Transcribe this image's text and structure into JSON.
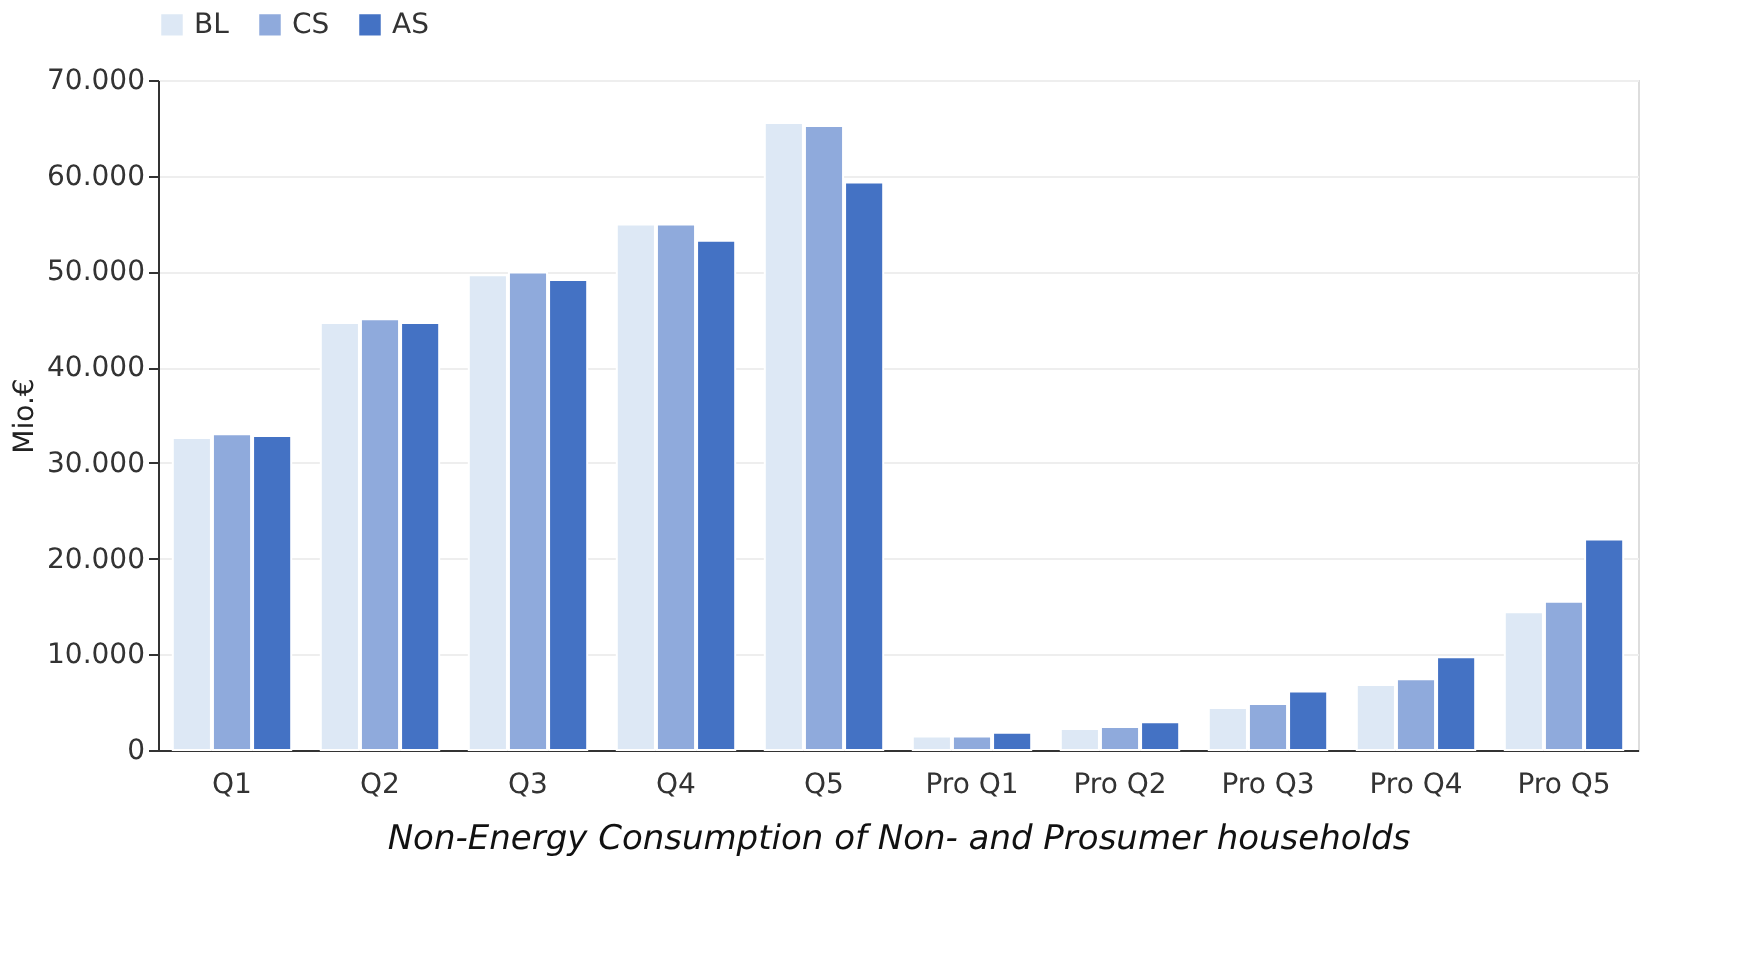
{
  "chart_data": {
    "type": "bar",
    "xlabel": "Non-Energy Consumption of  Non- and Prosumer households",
    "ylabel": "Mio.€",
    "categories": [
      "Q1",
      "Q2",
      "Q3",
      "Q4",
      "Q5",
      "Pro Q1",
      "Pro Q2",
      "Pro Q3",
      "Pro Q4",
      "Pro Q5"
    ],
    "series": [
      {
        "name": "BL",
        "color": "#dde8f5",
        "values": [
          32600,
          44600,
          49600,
          54900,
          65500,
          1400,
          2200,
          4400,
          6800,
          14400
        ]
      },
      {
        "name": "CS",
        "color": "#8faadc",
        "values": [
          33000,
          45000,
          49900,
          54900,
          65200,
          1400,
          2400,
          4800,
          7400,
          15500
        ]
      },
      {
        "name": "AS",
        "color": "#4472c4",
        "values": [
          32800,
          44600,
          49100,
          53200,
          59300,
          1800,
          2900,
          6100,
          9700,
          22000
        ]
      }
    ],
    "ylim": [
      0,
      70000
    ],
    "yticks": [
      {
        "value": 0,
        "label": "0"
      },
      {
        "value": 10000,
        "label": "10.000"
      },
      {
        "value": 20000,
        "label": "20.000"
      },
      {
        "value": 30000,
        "label": "30.000"
      },
      {
        "value": 40000,
        "label": "40.000"
      },
      {
        "value": 50000,
        "label": "50.000"
      },
      {
        "value": 60000,
        "label": "60.000"
      },
      {
        "value": 70000,
        "label": "70.000"
      }
    ],
    "grid": "y",
    "legend": "top"
  }
}
